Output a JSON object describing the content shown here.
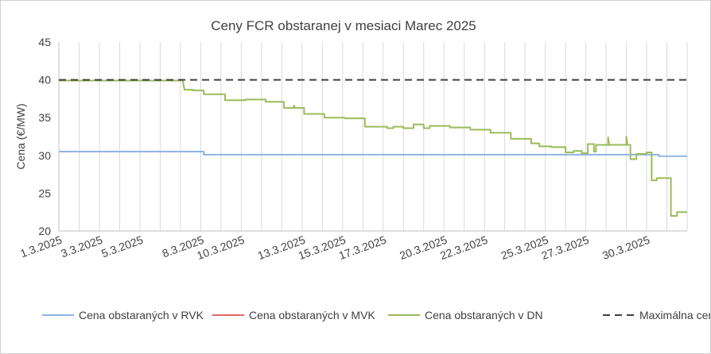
{
  "chart_data": {
    "type": "line",
    "title": "Ceny FCR obstaranej v mesiaci Marec 2025",
    "ylabel": "Cena (€/MW)",
    "xlabel": "",
    "ylim": [
      20,
      45
    ],
    "yticks": [
      "20",
      "25",
      "30",
      "35",
      "40",
      "45"
    ],
    "x_range_days": [
      1,
      32
    ],
    "xticks": [
      {
        "label": "1.3.2025",
        "day": 1
      },
      {
        "label": "3.3.2025",
        "day": 3
      },
      {
        "label": "5.3.2025",
        "day": 5
      },
      {
        "label": "8.3.2025",
        "day": 8
      },
      {
        "label": "10.3.2025",
        "day": 10
      },
      {
        "label": "13.3.2025",
        "day": 13
      },
      {
        "label": "15.3.2025",
        "day": 15
      },
      {
        "label": "17.3.2025",
        "day": 17
      },
      {
        "label": "20.3.2025",
        "day": 20
      },
      {
        "label": "22.3.2025",
        "day": 22
      },
      {
        "label": "25.3.2025",
        "day": 25
      },
      {
        "label": "27.3.2025",
        "day": 27
      },
      {
        "label": "30.3.2025",
        "day": 30
      }
    ],
    "grid": {
      "vertical": true,
      "horizontal": false
    },
    "legend_position": "bottom",
    "series": [
      {
        "name": "Cena obstaraných v RVK",
        "color": "#8eb4e3",
        "style": "solid",
        "points": [
          [
            1,
            30.5
          ],
          [
            8.15,
            30.5
          ],
          [
            8.15,
            30.1
          ],
          [
            30.6,
            30.1
          ],
          [
            30.6,
            29.9
          ],
          [
            32,
            29.9
          ]
        ]
      },
      {
        "name": "Cena obstaraných v MVK",
        "color": "#e06666",
        "style": "solid",
        "points": []
      },
      {
        "name": "Cena obstaraných v DN",
        "color": "#9bbb59",
        "style": "solid",
        "points": [
          [
            1,
            39.9
          ],
          [
            7,
            39.9
          ],
          [
            7,
            40.0
          ],
          [
            7.1,
            40.0
          ],
          [
            7.2,
            38.7
          ],
          [
            7.6,
            38.7
          ],
          [
            7.6,
            38.6
          ],
          [
            8.15,
            38.6
          ],
          [
            8.15,
            38.1
          ],
          [
            9.2,
            38.1
          ],
          [
            9.2,
            37.3
          ],
          [
            10.2,
            37.3
          ],
          [
            10.2,
            37.4
          ],
          [
            11.2,
            37.4
          ],
          [
            11.2,
            37.1
          ],
          [
            12.1,
            37.1
          ],
          [
            12.1,
            36.3
          ],
          [
            12.6,
            36.3
          ],
          [
            12.6,
            36.6
          ],
          [
            12.65,
            36.3
          ],
          [
            13.1,
            36.3
          ],
          [
            13.1,
            35.5
          ],
          [
            14.1,
            35.5
          ],
          [
            14.1,
            35.0
          ],
          [
            15.1,
            35.0
          ],
          [
            15.1,
            34.9
          ],
          [
            16.1,
            34.9
          ],
          [
            16.1,
            33.8
          ],
          [
            17.2,
            33.8
          ],
          [
            17.2,
            33.6
          ],
          [
            17.5,
            33.6
          ],
          [
            17.5,
            33.8
          ],
          [
            18.0,
            33.8
          ],
          [
            18.0,
            33.6
          ],
          [
            18.5,
            33.6
          ],
          [
            18.5,
            34.1
          ],
          [
            19.0,
            34.1
          ],
          [
            19.0,
            33.6
          ],
          [
            19.3,
            33.6
          ],
          [
            19.3,
            33.9
          ],
          [
            20.3,
            33.9
          ],
          [
            20.3,
            33.7
          ],
          [
            21.3,
            33.7
          ],
          [
            21.3,
            33.4
          ],
          [
            22.3,
            33.4
          ],
          [
            22.3,
            33.0
          ],
          [
            23.3,
            33.0
          ],
          [
            23.3,
            32.2
          ],
          [
            24.3,
            32.2
          ],
          [
            24.3,
            31.6
          ],
          [
            24.7,
            31.6
          ],
          [
            24.7,
            31.2
          ],
          [
            25.3,
            31.2
          ],
          [
            25.3,
            31.1
          ],
          [
            26.0,
            31.1
          ],
          [
            26.0,
            30.4
          ],
          [
            26.4,
            30.4
          ],
          [
            26.4,
            30.6
          ],
          [
            26.8,
            30.6
          ],
          [
            26.8,
            30.3
          ],
          [
            27.1,
            30.3
          ],
          [
            27.1,
            31.5
          ],
          [
            27.4,
            31.5
          ],
          [
            27.4,
            30.5
          ],
          [
            27.5,
            30.5
          ],
          [
            27.5,
            31.4
          ],
          [
            28.1,
            31.4
          ],
          [
            28.1,
            32.4
          ],
          [
            28.15,
            31.4
          ],
          [
            29.0,
            31.4
          ],
          [
            29.0,
            32.5
          ],
          [
            29.05,
            31.4
          ],
          [
            29.2,
            31.4
          ],
          [
            29.2,
            29.5
          ],
          [
            29.5,
            29.5
          ],
          [
            29.5,
            30.2
          ],
          [
            30.0,
            30.2
          ],
          [
            30.0,
            30.4
          ],
          [
            30.25,
            30.4
          ],
          [
            30.25,
            26.7
          ],
          [
            30.5,
            26.7
          ],
          [
            30.5,
            27.0
          ],
          [
            31.2,
            27.0
          ],
          [
            31.2,
            22.0
          ],
          [
            31.5,
            22.0
          ],
          [
            31.5,
            22.5
          ],
          [
            32,
            22.5
          ]
        ]
      },
      {
        "name": "Maximálna cena ÚRSO",
        "color": "#404040",
        "style": "dashed",
        "points": [
          [
            1,
            40
          ],
          [
            32,
            40
          ]
        ]
      }
    ]
  }
}
